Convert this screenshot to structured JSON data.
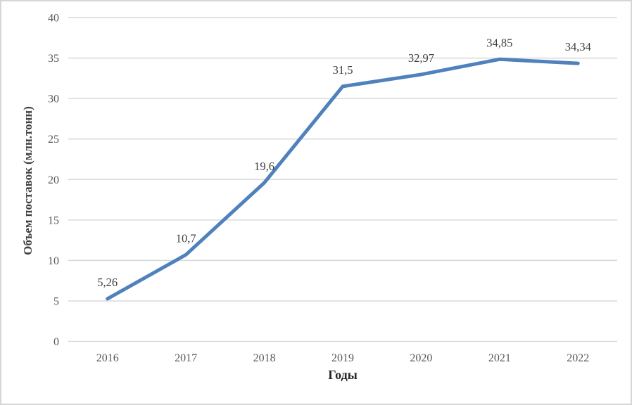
{
  "chart_data": {
    "type": "line",
    "title": "",
    "xlabel": "Годы",
    "ylabel": "Объем поставок (млн.тонн)",
    "categories": [
      "2016",
      "2017",
      "2018",
      "2019",
      "2020",
      "2021",
      "2022"
    ],
    "values": [
      5.26,
      10.7,
      19.6,
      31.5,
      32.97,
      34.85,
      34.34
    ],
    "data_labels": [
      "5,26",
      "10,7",
      "19,6",
      "31,5",
      "32,97",
      "34,85",
      "34,34"
    ],
    "ylim": [
      0,
      40
    ],
    "yticks": [
      0,
      5,
      10,
      15,
      20,
      25,
      30,
      35,
      40
    ],
    "grid": "horizontal",
    "legend": "none",
    "colors": {
      "line": "#4F81BD",
      "gridline": "#D9D9D9",
      "tick_label": "#595959",
      "data_label": "#3F3F3F",
      "axis_title": "#404040",
      "border": "#D6D6D6",
      "background": "#FFFFFF"
    }
  }
}
